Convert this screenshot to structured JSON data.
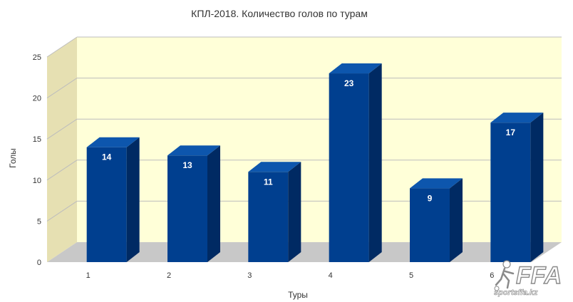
{
  "chart_data": {
    "type": "bar",
    "title": "КПЛ-2018. Количество голов по турам",
    "xlabel": "Туры",
    "ylabel": "Голы",
    "categories": [
      "1",
      "2",
      "3",
      "4",
      "5",
      "6"
    ],
    "values": [
      14,
      13,
      11,
      23,
      9,
      17
    ],
    "ylim": [
      0,
      25
    ],
    "yticks": [
      0,
      5,
      10,
      15,
      20,
      25
    ],
    "grid": true,
    "three_d": true,
    "colors": {
      "bar_front": "#003f8f",
      "bar_side": "#002a63",
      "bar_top": "#0d56ad",
      "back_wall": "#ffffd8",
      "side_wall": "#e6e0b2",
      "floor": "#c8c8c8",
      "grid": "#bdbdbd"
    }
  },
  "watermark": {
    "logo_text": "FFA",
    "site": "sportsffa.kz"
  }
}
